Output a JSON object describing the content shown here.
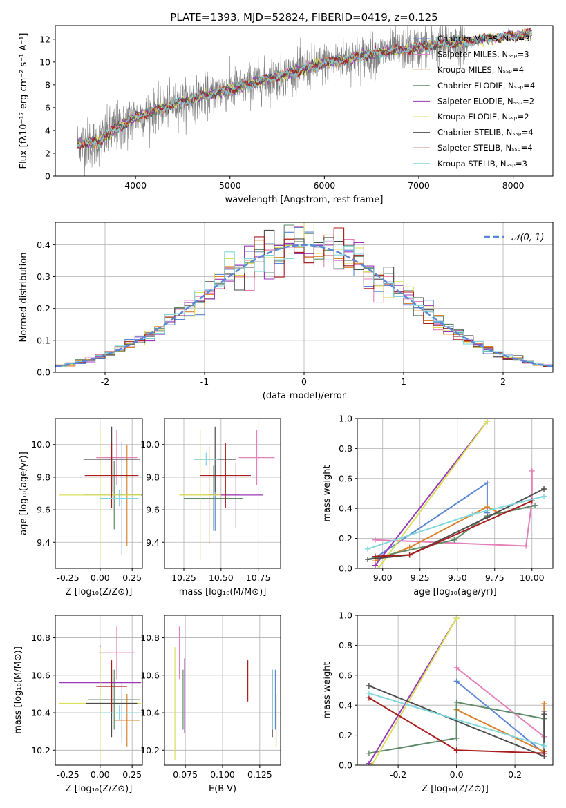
{
  "figure_title": "PLATE=1393, MJD=52824, FIBERID=0419, z=0.125",
  "colors": {
    "Chabrier MILES": "#5b86d6",
    "Salpeter MILES": "#e57fb8",
    "Kroupa MILES": "#d9822b",
    "Chabrier ELODIE": "#5e8a68",
    "Salpeter ELODIE": "#9a38b8",
    "Kroupa ELODIE": "#d8e05a",
    "Chabrier STELIB": "#4d4d4d",
    "Salpeter STELIB": "#a81c1c",
    "Kroupa STELIB": "#7fd6dc",
    "data": "#808080",
    "normal": "#5b86d6"
  },
  "chart_data": [
    {
      "type": "line",
      "title": "PLATE=1393, MJD=52824, FIBERID=0419, z=0.125",
      "xlabel": "wavelength [Angstrom, rest frame]",
      "ylabel": "Flux [fλ10⁻¹⁷ erg cm⁻² s⁻¹ A⁻¹]",
      "xlim": [
        3150,
        8420
      ],
      "ylim": [
        0,
        13.2
      ],
      "xticks": [
        4000,
        5000,
        6000,
        7000,
        8000
      ],
      "yticks": [
        0,
        2,
        4,
        6,
        8,
        10,
        12
      ],
      "data_trend_x": [
        3380,
        3600,
        3800,
        4000,
        4300,
        4600,
        5000,
        5500,
        6000,
        6500,
        7000,
        7500,
        8200
      ],
      "data_trend_y": [
        2.8,
        3.0,
        4.2,
        5.2,
        6.0,
        6.8,
        7.6,
        8.7,
        9.9,
        10.7,
        11.3,
        11.8,
        12.5
      ],
      "legend": [
        {
          "label": "Chabrier MILES, Nₛₛₚ=3",
          "model": "Chabrier MILES"
        },
        {
          "label": "Salpeter MILES, Nₛₛₚ=3",
          "model": "Salpeter MILES"
        },
        {
          "label": "Kroupa MILES, Nₛₛₚ=4",
          "model": "Kroupa MILES"
        },
        {
          "label": "Chabrier ELODIE, Nₛₛₚ=4",
          "model": "Chabrier ELODIE"
        },
        {
          "label": "Salpeter ELODIE, Nₛₛₚ=2",
          "model": "Salpeter ELODIE"
        },
        {
          "label": "Kroupa ELODIE, Nₛₛₚ=2",
          "model": "Kroupa ELODIE"
        },
        {
          "label": "Chabrier STELIB, Nₛₛₚ=4",
          "model": "Chabrier STELIB"
        },
        {
          "label": "Salpeter STELIB, Nₛₛₚ=4",
          "model": "Salpeter STELIB"
        },
        {
          "label": "Kroupa STELIB, Nₛₛₚ=3",
          "model": "Kroupa STELIB"
        }
      ]
    },
    {
      "type": "histogram",
      "xlabel": "(data-model)/error",
      "ylabel": "Normed distribution",
      "xlim": [
        -2.5,
        2.5
      ],
      "ylim": [
        0,
        0.47
      ],
      "xticks": [
        -2,
        -1,
        0,
        1,
        2
      ],
      "yticks": [
        0.0,
        0.1,
        0.2,
        0.3,
        0.4
      ],
      "grid": true,
      "legend": "𝒩(0, 1)",
      "bin_width": 0.1,
      "normal_curve": {
        "mean": 0,
        "sigma": 1
      }
    },
    {
      "type": "scatter_errorbars",
      "xlabel": "Z [log₁₀(Z/Z⊙)]",
      "ylabel": "age  [log₁₀(age/yr)]",
      "xlim": [
        -0.35,
        0.33
      ],
      "ylim": [
        9.24,
        10.16
      ],
      "xticks": [
        -0.25,
        0.0,
        0.25
      ],
      "yticks": [
        9.4,
        9.6,
        9.8,
        10.0
      ],
      "points": [
        {
          "model": "Chabrier MILES",
          "x": 0.17,
          "y": 9.67,
          "xerr": 0.13,
          "yerr": 0.35
        },
        {
          "model": "Salpeter MILES",
          "x": 0.13,
          "y": 9.92,
          "xerr": 0.16,
          "yerr": 0.17
        },
        {
          "model": "Kroupa MILES",
          "x": 0.21,
          "y": 9.69,
          "xerr": 0.1,
          "yerr": 0.31
        },
        {
          "model": "Chabrier ELODIE",
          "x": 0.11,
          "y": 9.69,
          "xerr": 0.24,
          "yerr": 0.21
        },
        {
          "model": "Salpeter ELODIE",
          "x": 0.09,
          "y": 9.91,
          "xerr": 0.03,
          "yerr": 0.2
        },
        {
          "model": "Kroupa ELODIE",
          "x": 0.0,
          "y": 9.69,
          "xerr": 0.32,
          "yerr": 0.4
        },
        {
          "model": "Chabrier STELIB",
          "x": 0.09,
          "y": 9.91,
          "xerr": 0.22,
          "yerr": 0.2
        },
        {
          "model": "Salpeter STELIB",
          "x": 0.09,
          "y": 9.81,
          "xerr": 0.21,
          "yerr": 0.2
        },
        {
          "model": "Kroupa STELIB",
          "x": 0.15,
          "y": 9.67,
          "xerr": 0.15,
          "yerr": 0.05
        }
      ]
    },
    {
      "type": "scatter_errorbars",
      "xlabel": "mass [log₁₀(M/M⊙)]",
      "ylabel": "",
      "xlim": [
        10.12,
        10.9
      ],
      "ylim": [
        9.24,
        10.16
      ],
      "xticks": [
        10.25,
        10.5,
        10.75
      ],
      "yticks": [
        9.4,
        9.6,
        9.8,
        10.0
      ],
      "points": [
        {
          "model": "Chabrier MILES",
          "x": 10.46,
          "y": 9.67,
          "xerr": 0.18,
          "yerr": 0.2
        },
        {
          "model": "Salpeter MILES",
          "x": 10.74,
          "y": 9.92,
          "xerr": 0.12,
          "yerr": 0.17
        },
        {
          "model": "Kroupa MILES",
          "x": 10.42,
          "y": 9.69,
          "xerr": 0.2,
          "yerr": 0.3
        },
        {
          "model": "Chabrier ELODIE",
          "x": 10.45,
          "y": 9.67,
          "xerr": 0.2,
          "yerr": 0.2
        },
        {
          "model": "Salpeter ELODIE",
          "x": 10.6,
          "y": 9.69,
          "xerr": 0.18,
          "yerr": 0.2
        },
        {
          "model": "Kroupa ELODIE",
          "x": 10.36,
          "y": 9.69,
          "xerr": 0.14,
          "yerr": 0.4
        },
        {
          "model": "Chabrier STELIB",
          "x": 10.46,
          "y": 9.91,
          "xerr": 0.14,
          "yerr": 0.2
        },
        {
          "model": "Salpeter STELIB",
          "x": 10.53,
          "y": 9.81,
          "xerr": 0.17,
          "yerr": 0.2
        },
        {
          "model": "Kroupa STELIB",
          "x": 10.4,
          "y": 9.91,
          "xerr": 0.08,
          "yerr": 0.04
        }
      ]
    },
    {
      "type": "line",
      "xlabel": "age  [log₁₀(age/yr)]",
      "ylabel": "mass weight",
      "xlim": [
        8.83,
        10.14
      ],
      "ylim": [
        0,
        1.0
      ],
      "xticks": [
        9.0,
        9.25,
        9.5,
        9.75,
        10.0
      ],
      "yticks": [
        0.0,
        0.2,
        0.4,
        0.6,
        0.8,
        1.0
      ],
      "grid": true,
      "series": [
        {
          "model": "Chabrier MILES",
          "x": [
            8.95,
            9.7,
            9.7
          ],
          "y": [
            0.07,
            0.57,
            0.37
          ]
        },
        {
          "model": "Salpeter MILES",
          "x": [
            8.95,
            9.96,
            10.0,
            10.0
          ],
          "y": [
            0.19,
            0.15,
            0.45,
            0.65
          ]
        },
        {
          "model": "Kroupa MILES",
          "x": [
            8.95,
            9.18,
            9.7,
            9.78
          ],
          "y": [
            0.05,
            0.14,
            0.41,
            0.37
          ]
        },
        {
          "model": "Chabrier ELODIE",
          "x": [
            8.9,
            9.48,
            9.7,
            10.02
          ],
          "y": [
            0.06,
            0.19,
            0.35,
            0.42
          ]
        },
        {
          "model": "Salpeter ELODIE",
          "x": [
            8.95,
            9.7
          ],
          "y": [
            0.02,
            0.98
          ]
        },
        {
          "model": "Kroupa ELODIE",
          "x": [
            8.97,
            9.7
          ],
          "y": [
            0.0,
            0.98
          ]
        },
        {
          "model": "Chabrier STELIB",
          "x": [
            8.9,
            9.18,
            9.7,
            10.08
          ],
          "y": [
            0.06,
            0.09,
            0.34,
            0.53
          ]
        },
        {
          "model": "Salpeter STELIB",
          "x": [
            8.95,
            9.18,
            10.0
          ],
          "y": [
            0.08,
            0.09,
            0.45
          ]
        },
        {
          "model": "Kroupa STELIB",
          "x": [
            8.9,
            9.6,
            10.08
          ],
          "y": [
            0.13,
            0.36,
            0.48
          ]
        }
      ]
    },
    {
      "type": "scatter_errorbars",
      "xlabel": "Z [log₁₀(Z/Z⊙)]",
      "ylabel": "mass [log₁₀(M/M⊙)]",
      "xlim": [
        -0.35,
        0.33
      ],
      "ylim": [
        10.12,
        10.92
      ],
      "xticks": [
        -0.25,
        0.0,
        0.25
      ],
      "yticks": [
        10.2,
        10.4,
        10.6,
        10.8
      ],
      "points": [
        {
          "model": "Chabrier MILES",
          "x": 0.17,
          "y": 10.4,
          "xerr": 0.13,
          "yerr": 0.16
        },
        {
          "model": "Salpeter MILES",
          "x": 0.13,
          "y": 10.72,
          "xerr": 0.14,
          "yerr": 0.14
        },
        {
          "model": "Kroupa MILES",
          "x": 0.21,
          "y": 10.36,
          "xerr": 0.1,
          "yerr": 0.14
        },
        {
          "model": "Chabrier ELODIE",
          "x": 0.11,
          "y": 10.47,
          "xerr": 0.2,
          "yerr": 0.16
        },
        {
          "model": "Salpeter ELODIE",
          "x": 0.0,
          "y": 10.56,
          "xerr": 0.32,
          "yerr": 0.2
        },
        {
          "model": "Kroupa ELODIE",
          "x": 0.0,
          "y": 10.45,
          "xerr": 0.32,
          "yerr": 0.3
        },
        {
          "model": "Chabrier STELIB",
          "x": 0.09,
          "y": 10.45,
          "xerr": 0.2,
          "yerr": 0.18
        },
        {
          "model": "Salpeter STELIB",
          "x": 0.09,
          "y": 10.54,
          "xerr": 0.12,
          "yerr": 0.14
        },
        {
          "model": "Kroupa STELIB",
          "x": 0.15,
          "y": 10.4,
          "xerr": 0.15,
          "yerr": 0.04
        }
      ]
    },
    {
      "type": "errorbars",
      "xlabel": "E(B-V)",
      "ylabel": "",
      "xlim": [
        0.061,
        0.139
      ],
      "ylim": [
        10.12,
        10.92
      ],
      "xticks": [
        0.075,
        0.1,
        0.125
      ],
      "yticks": [
        10.2,
        10.4,
        10.6,
        10.8
      ],
      "points": [
        {
          "model": "Chabrier MILES",
          "x": 0.1355,
          "y": 10.47,
          "yerr": 0.16
        },
        {
          "model": "Salpeter MILES",
          "x": 0.071,
          "y": 10.72,
          "yerr": 0.14
        },
        {
          "model": "Kroupa MILES",
          "x": 0.136,
          "y": 10.36,
          "yerr": 0.14
        },
        {
          "model": "Chabrier ELODIE",
          "x": 0.0735,
          "y": 10.47,
          "yerr": 0.16
        },
        {
          "model": "Salpeter ELODIE",
          "x": 0.0745,
          "y": 10.49,
          "yerr": 0.2
        },
        {
          "model": "Kroupa ELODIE",
          "x": 0.068,
          "y": 10.45,
          "yerr": 0.3
        },
        {
          "model": "Chabrier STELIB",
          "x": 0.1335,
          "y": 10.45,
          "yerr": 0.18
        },
        {
          "model": "Salpeter STELIB",
          "x": 0.117,
          "y": 10.57,
          "yerr": 0.11
        },
        {
          "model": "Kroupa STELIB",
          "x": 0.1335,
          "y": 10.47,
          "yerr": 0.16
        }
      ]
    },
    {
      "type": "line",
      "xlabel": "Z [log₁₀(Z/Z⊙)]",
      "ylabel": "mass weight",
      "xlim": [
        -0.34,
        0.33
      ],
      "ylim": [
        0,
        1.0
      ],
      "xticks": [
        -0.2,
        0.0,
        0.2
      ],
      "yticks": [
        0.0,
        0.2,
        0.4,
        0.6,
        0.8,
        1.0
      ],
      "grid": true,
      "series": [
        {
          "model": "Chabrier MILES",
          "x": [
            0.0,
            0.3,
            0.3
          ],
          "y": [
            0.56,
            0.08,
            0.36
          ]
        },
        {
          "model": "Salpeter MILES",
          "x": [
            0.0,
            0.3
          ],
          "y": [
            0.65,
            0.19
          ]
        },
        {
          "model": "Kroupa MILES",
          "x": [
            0.0,
            0.3,
            0.3
          ],
          "y": [
            0.37,
            0.09,
            0.41
          ]
        },
        {
          "model": "Chabrier ELODIE",
          "x": [
            -0.3,
            0.0,
            0.0,
            0.3
          ],
          "y": [
            0.08,
            0.18,
            0.42,
            0.31
          ]
        },
        {
          "model": "Salpeter ELODIE",
          "x": [
            -0.3,
            0.0
          ],
          "y": [
            0.01,
            0.98
          ]
        },
        {
          "model": "Kroupa ELODIE",
          "x": [
            -0.29,
            0.0
          ],
          "y": [
            0.0,
            0.98
          ]
        },
        {
          "model": "Chabrier STELIB",
          "x": [
            -0.3,
            0.3,
            0.3
          ],
          "y": [
            0.53,
            0.06,
            0.34
          ]
        },
        {
          "model": "Salpeter STELIB",
          "x": [
            -0.3,
            0.0,
            0.3
          ],
          "y": [
            0.45,
            0.1,
            0.08
          ]
        },
        {
          "model": "Kroupa STELIB",
          "x": [
            -0.3,
            0.3
          ],
          "y": [
            0.48,
            0.13
          ]
        }
      ]
    }
  ]
}
